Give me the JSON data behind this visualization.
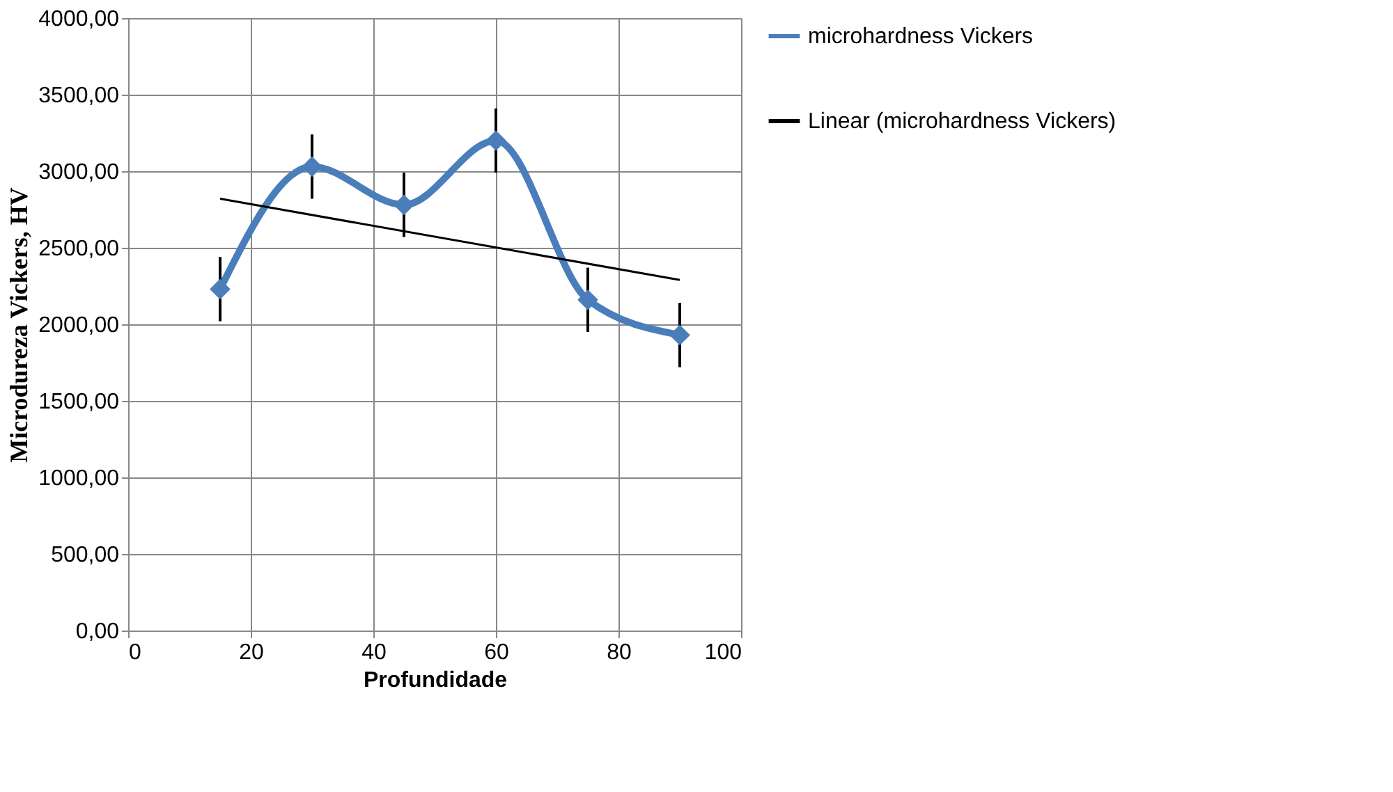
{
  "chart_data": {
    "type": "line",
    "xlabel": "Profundidade",
    "ylabel": "Microdureza  Vickers, HV",
    "x": [
      15,
      30,
      45,
      60,
      75,
      90
    ],
    "series": [
      {
        "name": "microhardness Vickers",
        "color": "#4a7ebb",
        "values": [
          2230,
          3030,
          2780,
          3200,
          2160,
          1930
        ],
        "errors": [
          210,
          210,
          210,
          210,
          210,
          210
        ],
        "marker": "diamond",
        "line_style": "solid"
      },
      {
        "name": "Linear (microhardness Vickers)",
        "color": "#000000",
        "type": "line",
        "x": [
          15,
          90
        ],
        "values": [
          2820,
          2290
        ],
        "marker": "none",
        "line_style": "solid"
      }
    ],
    "xlim": [
      0,
      100
    ],
    "xticks": [
      0,
      20,
      40,
      60,
      80,
      100
    ],
    "ylim": [
      0,
      4000
    ],
    "yticks": [
      {
        "value": 0,
        "label": "0,00"
      },
      {
        "value": 500,
        "label": "500,00"
      },
      {
        "value": 1000,
        "label": "1000,00"
      },
      {
        "value": 1500,
        "label": "1500,00"
      },
      {
        "value": 2000,
        "label": "2000,00"
      },
      {
        "value": 2500,
        "label": "2500,00"
      },
      {
        "value": 3000,
        "label": "3000,00"
      },
      {
        "value": 3500,
        "label": "3500,00"
      },
      {
        "value": 4000,
        "label": "4000,00"
      }
    ],
    "grid": true,
    "legend": "right"
  }
}
